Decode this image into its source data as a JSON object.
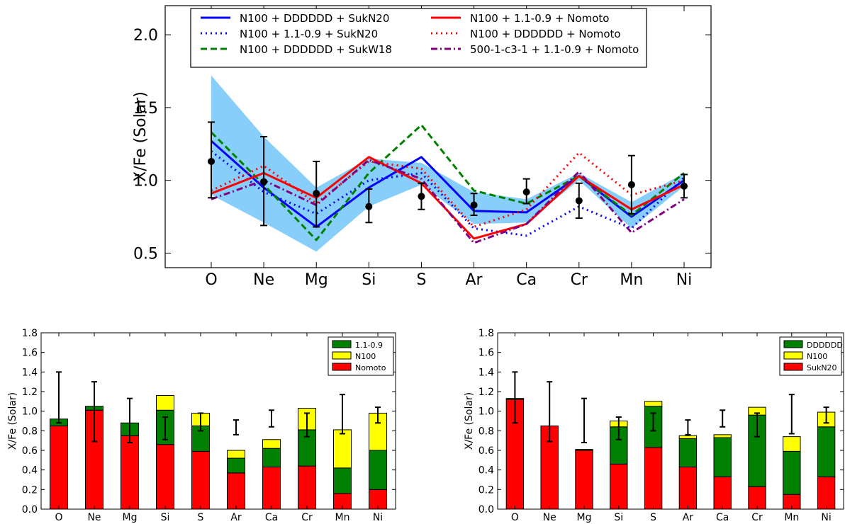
{
  "chart_data": [
    {
      "type": "line",
      "ylabel": "X/Fe (Solar)",
      "xlabel": "",
      "ylim": [
        0.4,
        2.2
      ],
      "yticks": [
        0.5,
        1.0,
        1.5,
        2.0
      ],
      "ytick_labels": [
        "0.5",
        "1.0",
        "1.5",
        "2.0"
      ],
      "categories": [
        "O",
        "Ne",
        "Mg",
        "Si",
        "S",
        "Ar",
        "Ca",
        "Cr",
        "Mn",
        "Ni"
      ],
      "legend_position": "top",
      "band": {
        "color": "#87cefa",
        "upper": [
          1.72,
          1.3,
          0.95,
          1.15,
          1.12,
          0.92,
          0.87,
          1.05,
          0.85,
          1.05
        ],
        "lower": [
          0.9,
          0.71,
          0.51,
          0.82,
          0.97,
          0.7,
          0.71,
          1.0,
          0.67,
          0.96
        ]
      },
      "series": [
        {
          "name": "N100 + DDDDDD + SukN20",
          "color": "#0000ff",
          "dash": "solid",
          "values": [
            1.27,
            0.95,
            0.68,
            0.95,
            1.16,
            0.79,
            0.78,
            1.03,
            0.75,
            1.0
          ]
        },
        {
          "name": "N100 + 1.1-0.9 + SukN20",
          "color": "#0000ff",
          "dash": "dotted",
          "values": [
            1.2,
            0.92,
            0.77,
            1.0,
            1.05,
            0.67,
            0.62,
            0.82,
            0.67,
            1.02
          ]
        },
        {
          "name": "N100 + DDDDDD + SukW18",
          "color": "#008000",
          "dash": "dashed",
          "values": [
            1.33,
            0.97,
            0.59,
            1.05,
            1.38,
            0.93,
            0.84,
            1.03,
            0.76,
            1.05
          ]
        },
        {
          "name": "N100 + 1.1-0.9 + Nomoto",
          "color": "#ff0000",
          "dash": "solid",
          "values": [
            0.91,
            1.05,
            0.88,
            1.16,
            0.98,
            0.6,
            0.7,
            1.03,
            0.8,
            0.97
          ]
        },
        {
          "name": "N100 + DDDDDD + Nomoto",
          "color": "#ff0000",
          "dash": "dotted",
          "values": [
            0.93,
            1.1,
            0.84,
            1.13,
            1.08,
            0.68,
            0.8,
            1.19,
            0.9,
            1.0
          ]
        },
        {
          "name": "500-1-c3-1 + 1.1-0.9 + Nomoto",
          "color": "#800080",
          "dash": "dashdot",
          "values": [
            0.87,
            1.0,
            0.83,
            1.14,
            1.01,
            0.57,
            0.7,
            1.06,
            0.64,
            0.87
          ]
        }
      ],
      "observed": {
        "color": "#000000",
        "values": [
          1.13,
          0.99,
          0.91,
          0.82,
          0.89,
          0.83,
          0.92,
          0.86,
          0.97,
          0.96
        ],
        "lower": [
          0.88,
          0.69,
          0.68,
          0.71,
          0.8,
          0.76,
          0.84,
          0.74,
          0.77,
          0.88
        ],
        "upper": [
          1.4,
          1.3,
          1.13,
          0.94,
          0.98,
          0.91,
          1.01,
          0.98,
          1.17,
          1.04
        ]
      }
    },
    {
      "type": "bar",
      "stacked": true,
      "ylabel": "X/Fe (Solar)",
      "xlabel": "",
      "ylim": [
        0.0,
        1.8
      ],
      "yticks": [
        0.0,
        0.2,
        0.4,
        0.6,
        0.8,
        1.0,
        1.2,
        1.4,
        1.6,
        1.8
      ],
      "ytick_labels": [
        "0.0",
        "0.2",
        "0.4",
        "0.6",
        "0.8",
        "1.0",
        "1.2",
        "1.4",
        "1.6",
        "1.8"
      ],
      "categories": [
        "O",
        "Ne",
        "Mg",
        "Si",
        "S",
        "Ar",
        "Ca",
        "Cr",
        "Mn",
        "Ni"
      ],
      "legend_position": "top-right",
      "legend_order": [
        "1.1-0.9",
        "N100",
        "Nomoto"
      ],
      "series": [
        {
          "name": "Nomoto",
          "color": "#ff0000",
          "values": [
            0.85,
            1.01,
            0.75,
            0.66,
            0.59,
            0.37,
            0.43,
            0.44,
            0.16,
            0.2
          ]
        },
        {
          "name": "1.1-0.9",
          "color": "#008000",
          "values": [
            0.07,
            0.04,
            0.13,
            0.35,
            0.26,
            0.15,
            0.19,
            0.37,
            0.26,
            0.4
          ]
        },
        {
          "name": "N100",
          "color": "#ffff00",
          "values": [
            0.0,
            0.0,
            0.0,
            0.15,
            0.13,
            0.08,
            0.09,
            0.22,
            0.39,
            0.38
          ]
        }
      ],
      "observed": {
        "values": [
          1.13,
          0.99,
          0.91,
          0.82,
          0.89,
          0.83,
          0.92,
          0.86,
          0.97,
          0.96
        ],
        "lower": [
          0.88,
          0.69,
          0.68,
          0.71,
          0.8,
          0.76,
          0.84,
          0.74,
          0.77,
          0.88
        ],
        "upper": [
          1.4,
          1.3,
          1.13,
          0.94,
          0.98,
          0.91,
          1.01,
          0.98,
          1.17,
          1.04
        ]
      }
    },
    {
      "type": "bar",
      "stacked": true,
      "ylabel": "X/Fe (Solar)",
      "xlabel": "",
      "ylim": [
        0.0,
        1.8
      ],
      "yticks": [
        0.0,
        0.2,
        0.4,
        0.6,
        0.8,
        1.0,
        1.2,
        1.4,
        1.6,
        1.8
      ],
      "ytick_labels": [
        "0.0",
        "0.2",
        "0.4",
        "0.6",
        "0.8",
        "1.0",
        "1.2",
        "1.4",
        "1.6",
        "1.8"
      ],
      "categories": [
        "O",
        "Ne",
        "Mg",
        "Si",
        "S",
        "Ar",
        "Ca",
        "Cr",
        "Mn",
        "Ni"
      ],
      "legend_position": "top-right",
      "legend_order": [
        "DDDDDD",
        "N100",
        "SukN20"
      ],
      "series": [
        {
          "name": "SukN20",
          "color": "#ff0000",
          "values": [
            1.12,
            0.85,
            0.6,
            0.46,
            0.63,
            0.43,
            0.33,
            0.23,
            0.15,
            0.33
          ]
        },
        {
          "name": "DDDDDD",
          "color": "#008000",
          "values": [
            0.01,
            0.0,
            0.01,
            0.38,
            0.42,
            0.29,
            0.4,
            0.73,
            0.44,
            0.51
          ]
        },
        {
          "name": "N100",
          "color": "#ffff00",
          "values": [
            0.0,
            0.0,
            0.0,
            0.06,
            0.05,
            0.03,
            0.03,
            0.08,
            0.15,
            0.15
          ]
        }
      ],
      "observed": {
        "values": [
          1.13,
          0.99,
          0.91,
          0.82,
          0.89,
          0.83,
          0.92,
          0.86,
          0.97,
          0.96
        ],
        "lower": [
          0.88,
          0.69,
          0.68,
          0.71,
          0.8,
          0.76,
          0.84,
          0.74,
          0.77,
          0.88
        ],
        "upper": [
          1.4,
          1.3,
          1.13,
          0.94,
          0.98,
          0.91,
          1.01,
          0.98,
          1.17,
          1.04
        ]
      }
    }
  ]
}
